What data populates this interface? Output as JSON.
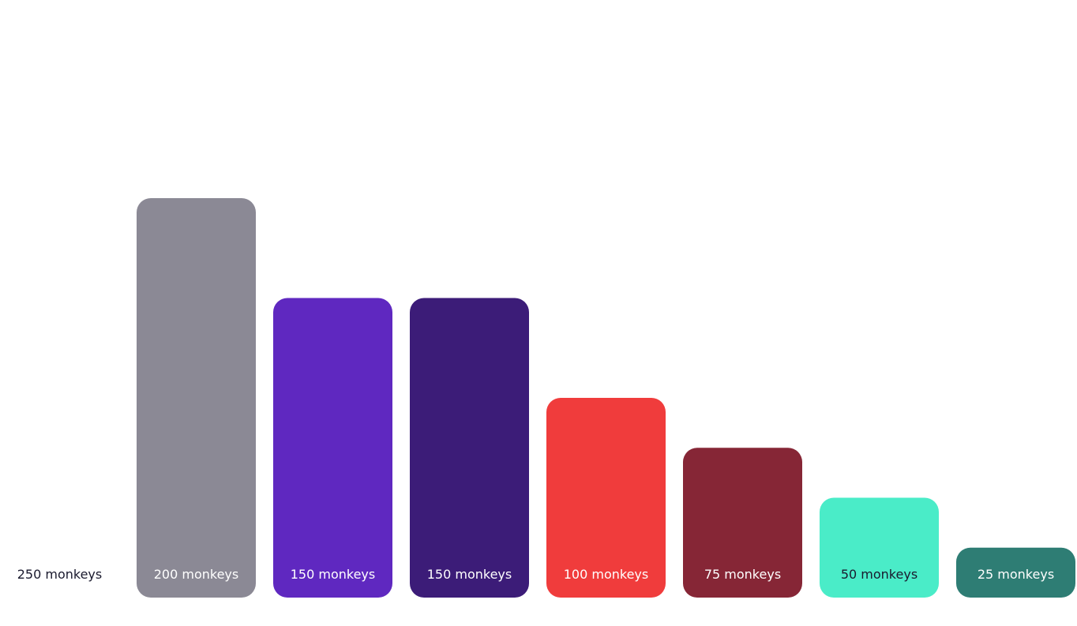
{
  "chart_data": {
    "type": "bar",
    "title": "",
    "xlabel": "",
    "ylabel": "",
    "grid": false,
    "ylim": [
      0,
      250
    ],
    "categories": [
      "250 monkeys",
      "200 monkeys",
      "150 monkeys",
      "150 monkeys",
      "100 monkeys",
      "75 monkeys",
      "50 monkeys",
      "25 monkeys"
    ],
    "values": [
      250,
      200,
      150,
      150,
      100,
      75,
      50,
      25
    ],
    "colors": [
      "#ffffff",
      "#8b8995",
      "#5f28c0",
      "#3c1c78",
      "#f03c3c",
      "#862636",
      "#4aecc8",
      "#2e7d74"
    ],
    "label_colors": [
      "#1a1a2e",
      "#ffffff",
      "#ffffff",
      "#ffffff",
      "#ffffff",
      "#ffffff",
      "#1a1a2e",
      "#ffffff"
    ]
  }
}
